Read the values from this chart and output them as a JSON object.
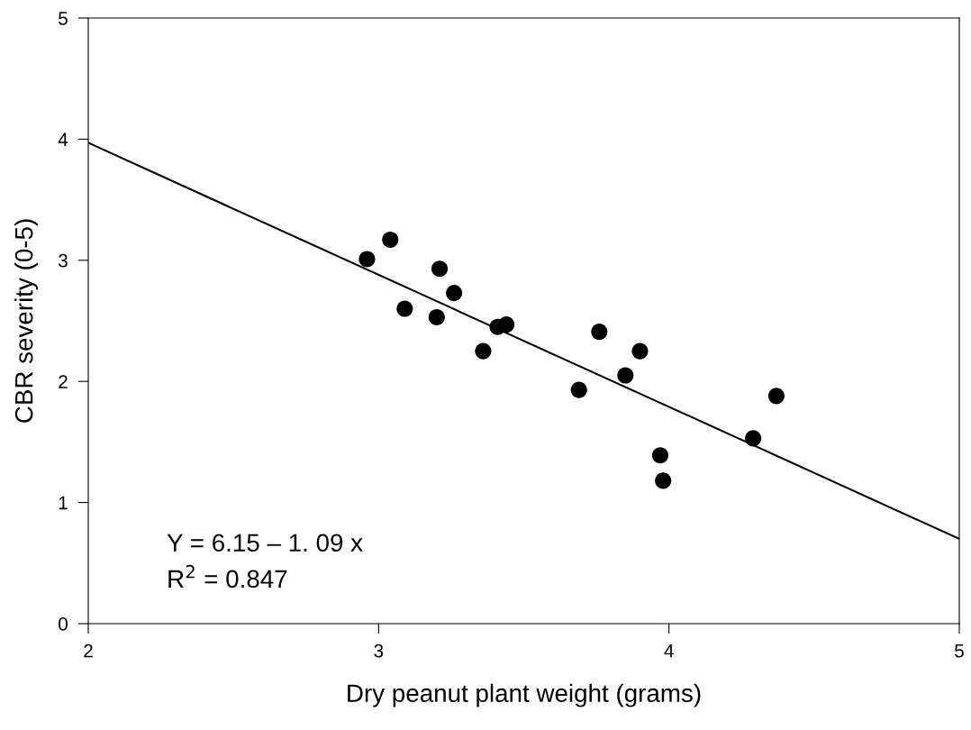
{
  "chart_data": {
    "type": "scatter",
    "xlabel": "Dry peanut plant weight (grams)",
    "ylabel": "CBR severity (0-5)",
    "series": [
      {
        "color": "#000000",
        "marker": "circle",
        "x": [
          2.96,
          3.04,
          3.21,
          3.26,
          3.09,
          3.2,
          3.41,
          3.44,
          3.36,
          3.76,
          3.9,
          3.85,
          3.69,
          4.37,
          4.29,
          3.97,
          3.98
        ],
        "values": [
          3.01,
          3.17,
          2.93,
          2.73,
          2.6,
          2.53,
          2.45,
          2.47,
          2.25,
          2.41,
          2.25,
          2.05,
          1.93,
          1.88,
          1.53,
          1.39,
          1.18
        ]
      },
      {
        "type": "line",
        "color": "#000000",
        "x": [
          2,
          5
        ],
        "values": [
          3.97,
          0.7
        ]
      }
    ],
    "annotations": [
      "Y = 6.15 – 1. 09 x",
      "R$^{2}$ = 0.847"
    ],
    "xlim": [
      2,
      5
    ],
    "xticks": [
      2,
      3,
      4,
      5
    ],
    "ylim": [
      0,
      5
    ],
    "yticks": [
      0,
      1,
      2,
      3,
      4,
      5
    ],
    "grid": false,
    "legend": false
  }
}
